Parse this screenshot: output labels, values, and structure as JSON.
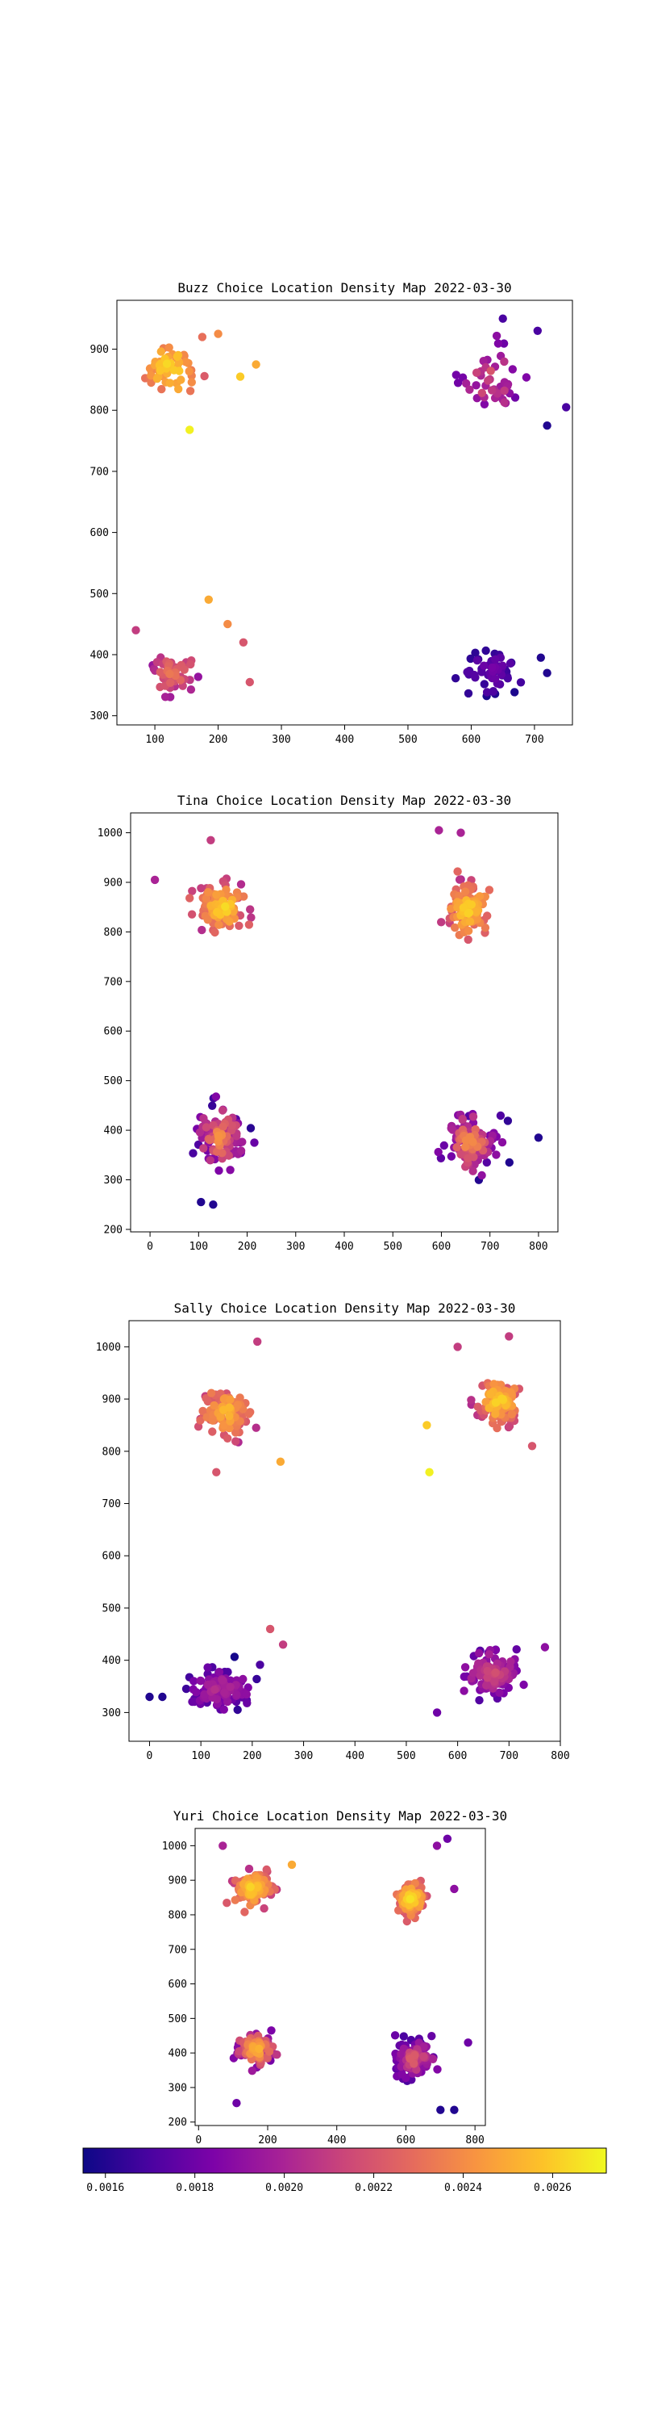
{
  "colorbar": {
    "colormap": "plasma",
    "min": 0.00155,
    "max": 0.00272,
    "ticks": [
      "0.0016",
      "0.0018",
      "0.0020",
      "0.0022",
      "0.0024",
      "0.0026"
    ],
    "tick_values": [
      0.0016,
      0.0018,
      0.002,
      0.0022,
      0.0024,
      0.0026
    ]
  },
  "chart_data": [
    {
      "type": "scatter",
      "title": "Buzz Choice Location Density Map 2022-03-30",
      "xlabel": "",
      "ylabel": "",
      "xlim": [
        40,
        760
      ],
      "ylim": [
        285,
        980
      ],
      "xticks": [
        100,
        200,
        300,
        400,
        500,
        600,
        700
      ],
      "yticks": [
        300,
        400,
        500,
        600,
        700,
        800,
        900
      ],
      "grid": false,
      "clusters": [
        {
          "center": [
            125,
            870
          ],
          "spread": [
            35,
            35
          ],
          "count": 55,
          "density": [
            0.0022,
            0.0027
          ]
        },
        {
          "center": [
            630,
            850
          ],
          "spread": [
            45,
            45
          ],
          "count": 45,
          "density": [
            0.00165,
            0.0023
          ]
        },
        {
          "center": [
            130,
            370
          ],
          "spread": [
            35,
            35
          ],
          "count": 50,
          "density": [
            0.0018,
            0.0024
          ]
        },
        {
          "center": [
            630,
            375
          ],
          "spread": [
            40,
            30
          ],
          "count": 55,
          "density": [
            0.00155,
            0.00185
          ]
        }
      ],
      "points": [
        [
          200,
          925,
          0.0024
        ],
        [
          175,
          920,
          0.0023
        ],
        [
          260,
          875,
          0.0025
        ],
        [
          235,
          855,
          0.0026
        ],
        [
          155,
          768,
          0.0027
        ],
        [
          185,
          490,
          0.0025
        ],
        [
          215,
          450,
          0.0024
        ],
        [
          70,
          440,
          0.0021
        ],
        [
          240,
          420,
          0.0022
        ],
        [
          250,
          355,
          0.0022
        ],
        [
          650,
          950,
          0.0017
        ],
        [
          705,
          930,
          0.0017
        ],
        [
          750,
          805,
          0.0017
        ],
        [
          720,
          775,
          0.0016
        ],
        [
          710,
          395,
          0.0016
        ],
        [
          720,
          370,
          0.0016
        ]
      ]
    },
    {
      "type": "scatter",
      "title": "Tina Choice Location Density Map 2022-03-30",
      "xlabel": "",
      "ylabel": "",
      "xlim": [
        -40,
        840
      ],
      "ylim": [
        195,
        1040
      ],
      "xticks": [
        0,
        100,
        200,
        300,
        400,
        500,
        600,
        700,
        800
      ],
      "yticks": [
        200,
        300,
        400,
        500,
        600,
        700,
        800,
        900,
        1000
      ],
      "grid": false,
      "clusters": [
        {
          "center": [
            150,
            850
          ],
          "spread": [
            40,
            40
          ],
          "count": 110,
          "density": [
            0.002,
            0.0027
          ]
        },
        {
          "center": [
            655,
            845
          ],
          "spread": [
            40,
            40
          ],
          "count": 110,
          "density": [
            0.002,
            0.0027
          ]
        },
        {
          "center": [
            145,
            385
          ],
          "spread": [
            40,
            50
          ],
          "count": 110,
          "density": [
            0.00155,
            0.0025
          ]
        },
        {
          "center": [
            660,
            375
          ],
          "spread": [
            45,
            50
          ],
          "count": 110,
          "density": [
            0.00155,
            0.0025
          ]
        }
      ],
      "points": [
        [
          10,
          905,
          0.002
        ],
        [
          125,
          985,
          0.0021
        ],
        [
          595,
          1005,
          0.002
        ],
        [
          640,
          1000,
          0.002
        ],
        [
          800,
          385,
          0.0016
        ],
        [
          740,
          335,
          0.0016
        ],
        [
          105,
          255,
          0.0016
        ],
        [
          130,
          250,
          0.0016
        ]
      ]
    },
    {
      "type": "scatter",
      "title": "Sally Choice Location Density Map 2022-03-30",
      "xlabel": "",
      "ylabel": "",
      "xlim": [
        -40,
        800
      ],
      "ylim": [
        245,
        1050
      ],
      "xticks": [
        0,
        100,
        200,
        300,
        400,
        500,
        600,
        700,
        800
      ],
      "yticks": [
        300,
        400,
        500,
        600,
        700,
        800,
        900,
        1000
      ],
      "grid": false,
      "clusters": [
        {
          "center": [
            150,
            875
          ],
          "spread": [
            45,
            40
          ],
          "count": 120,
          "density": [
            0.002,
            0.0026
          ]
        },
        {
          "center": [
            680,
            895
          ],
          "spread": [
            35,
            35
          ],
          "count": 120,
          "density": [
            0.002,
            0.0027
          ]
        },
        {
          "center": [
            140,
            345
          ],
          "spread": [
            55,
            35
          ],
          "count": 120,
          "density": [
            0.00155,
            0.0021
          ]
        },
        {
          "center": [
            670,
            375
          ],
          "spread": [
            45,
            35
          ],
          "count": 120,
          "density": [
            0.0017,
            0.0022
          ]
        }
      ],
      "points": [
        [
          0,
          330,
          0.0016
        ],
        [
          25,
          330,
          0.0016
        ],
        [
          210,
          1010,
          0.0021
        ],
        [
          130,
          760,
          0.0022
        ],
        [
          255,
          780,
          0.0025
        ],
        [
          540,
          850,
          0.0026
        ],
        [
          545,
          760,
          0.0027
        ],
        [
          745,
          810,
          0.0022
        ],
        [
          700,
          1020,
          0.0021
        ],
        [
          600,
          1000,
          0.0021
        ],
        [
          770,
          425,
          0.0019
        ],
        [
          560,
          300,
          0.0018
        ],
        [
          260,
          430,
          0.0021
        ],
        [
          235,
          460,
          0.0022
        ]
      ]
    },
    {
      "type": "scatter",
      "title": "Yuri Choice Location Density Map 2022-03-30",
      "xlabel": "",
      "ylabel": "",
      "xlim": [
        -10,
        830
      ],
      "ylim": [
        190,
        1050
      ],
      "xticks": [
        0,
        200,
        400,
        600,
        800
      ],
      "yticks": [
        200,
        300,
        400,
        500,
        600,
        700,
        800,
        900,
        1000
      ],
      "grid": false,
      "clusters": [
        {
          "center": [
            155,
            875
          ],
          "spread": [
            45,
            40
          ],
          "count": 120,
          "density": [
            0.002,
            0.0027
          ]
        },
        {
          "center": [
            615,
            845
          ],
          "spread": [
            35,
            40
          ],
          "count": 120,
          "density": [
            0.002,
            0.0027
          ]
        },
        {
          "center": [
            165,
            410
          ],
          "spread": [
            45,
            40
          ],
          "count": 120,
          "density": [
            0.0017,
            0.0026
          ]
        },
        {
          "center": [
            625,
            380
          ],
          "spread": [
            50,
            45
          ],
          "count": 120,
          "density": [
            0.00155,
            0.0023
          ]
        }
      ],
      "points": [
        [
          70,
          1000,
          0.002
        ],
        [
          270,
          945,
          0.0025
        ],
        [
          720,
          1020,
          0.0018
        ],
        [
          690,
          1000,
          0.0019
        ],
        [
          740,
          875,
          0.0019
        ],
        [
          780,
          430,
          0.0018
        ],
        [
          740,
          235,
          0.0016
        ],
        [
          700,
          235,
          0.0016
        ],
        [
          110,
          255,
          0.0018
        ]
      ]
    }
  ]
}
